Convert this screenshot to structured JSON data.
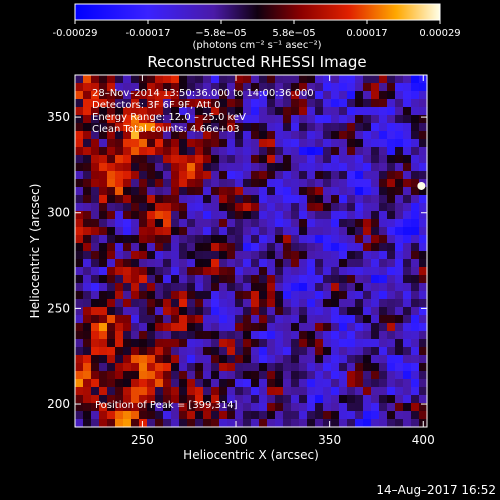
{
  "chart_data": {
    "type": "heatmap",
    "title": "Reconstructed RHESSI Image",
    "xlabel": "Heliocentric X (arcsec)",
    "ylabel": "Heliocentric Y (arcsec)",
    "xlim": [
      214,
      402
    ],
    "ylim": [
      188,
      372
    ],
    "x_ticks": [
      "250",
      "300",
      "350",
      "400"
    ],
    "y_ticks": [
      "200",
      "250",
      "300",
      "350"
    ],
    "colorbar": {
      "min": -0.00029,
      "max": 0.00029,
      "ticks": [
        "-0.00029",
        "-0.00017",
        "−5.8e−05",
        "5.8e−05",
        "0.00017",
        "0.00029"
      ],
      "unit_label": "(photons cm⁻² s⁻¹ asec⁻²)"
    },
    "annotations": [
      "28–Nov–2014 13:50:36.000 to 14:00:36.000",
      "Detectors: 3F 6F 9F, Att 0",
      "Energy Range: 12.0 – 25.0 keV",
      "Clean     Total counts: 4.66e+03"
    ],
    "peak_label": "Position of Peak = [399,314]",
    "peak": [
      399,
      314
    ],
    "timestamp": "14–Aug–2017 16:52"
  }
}
